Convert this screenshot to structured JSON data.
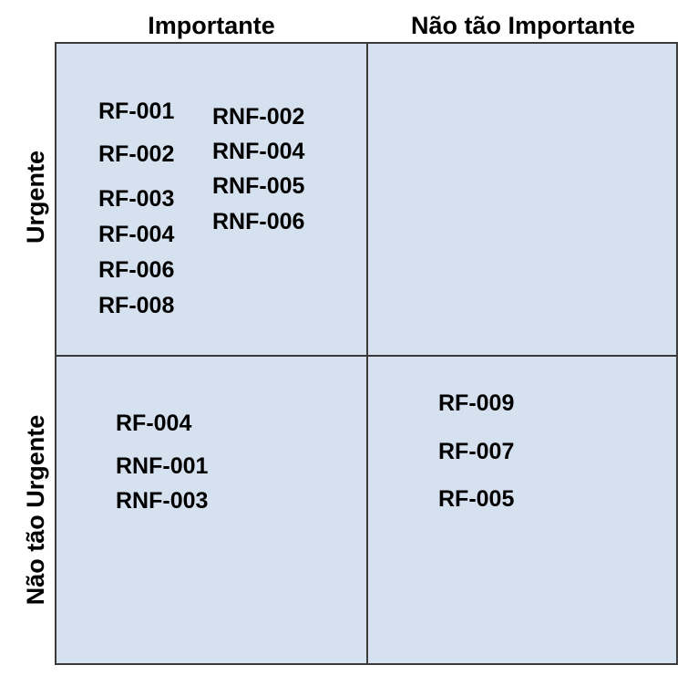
{
  "columns": {
    "c1": "Importante",
    "c2": "Não tão Importante"
  },
  "rows": {
    "r1": "Urgente",
    "r2": "Não tão Urgente"
  },
  "quadrants": {
    "urgent_important": {
      "left_list": [
        "RF-001",
        "RF-002",
        "RF-003",
        "RF-004",
        "RF-006",
        "RF-008"
      ],
      "right_list": [
        "RNF-002",
        "RNF-004",
        "RNF-005",
        "RNF-006"
      ]
    },
    "urgent_not_important": [],
    "not_urgent_important": [
      "RF-004",
      "RNF-001",
      "RNF-003"
    ],
    "not_urgent_not_important": [
      "RF-009",
      "RF-007",
      "RF-005"
    ]
  },
  "colors": {
    "cell_fill": "#d6e1f0",
    "border": "#3a3a3a"
  }
}
